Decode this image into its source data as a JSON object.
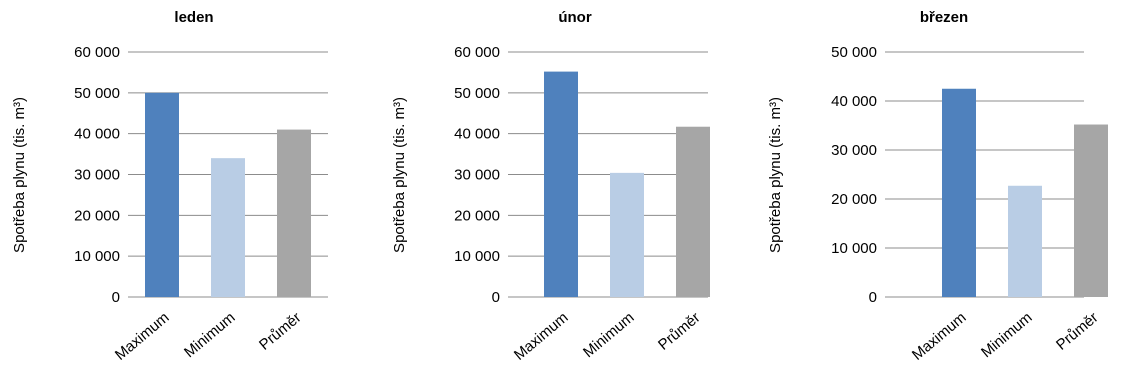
{
  "chart_data": [
    {
      "type": "bar",
      "title": "leden",
      "ylabel": "Spotřeba plynu (tis. m³)",
      "categories": [
        "Maximum",
        "Minimum",
        "Průměr"
      ],
      "values": [
        50000,
        34000,
        41000
      ],
      "ylim": [
        0,
        60000
      ],
      "yticks": [
        "0",
        "10 000",
        "20 000",
        "30 000",
        "40 000",
        "50 000",
        "60 000"
      ],
      "colors": [
        "#4f81bd",
        "#b9cde5",
        "#a6a6a6"
      ],
      "grid": true
    },
    {
      "type": "bar",
      "title": "únor",
      "ylabel": "Spotřeba plynu (tis. m³)",
      "categories": [
        "Maximum",
        "Minimum",
        "Průměr"
      ],
      "values": [
        55200,
        30400,
        41700
      ],
      "ylim": [
        0,
        60000
      ],
      "yticks": [
        "0",
        "10 000",
        "20 000",
        "30 000",
        "40 000",
        "50 000",
        "60 000"
      ],
      "colors": [
        "#4f81bd",
        "#b9cde5",
        "#a6a6a6"
      ],
      "grid": true
    },
    {
      "type": "bar",
      "title": "březen",
      "ylabel": "Spotřeba plynu (tis. m³)",
      "categories": [
        "Maximum",
        "Minimum",
        "Průměr"
      ],
      "values": [
        42500,
        22700,
        35200
      ],
      "ylim": [
        0,
        50000
      ],
      "yticks": [
        "0",
        "10 000",
        "20 000",
        "30 000",
        "40 000",
        "50 000"
      ],
      "colors": [
        "#4f81bd",
        "#b9cde5",
        "#a6a6a6"
      ],
      "grid": true
    }
  ]
}
